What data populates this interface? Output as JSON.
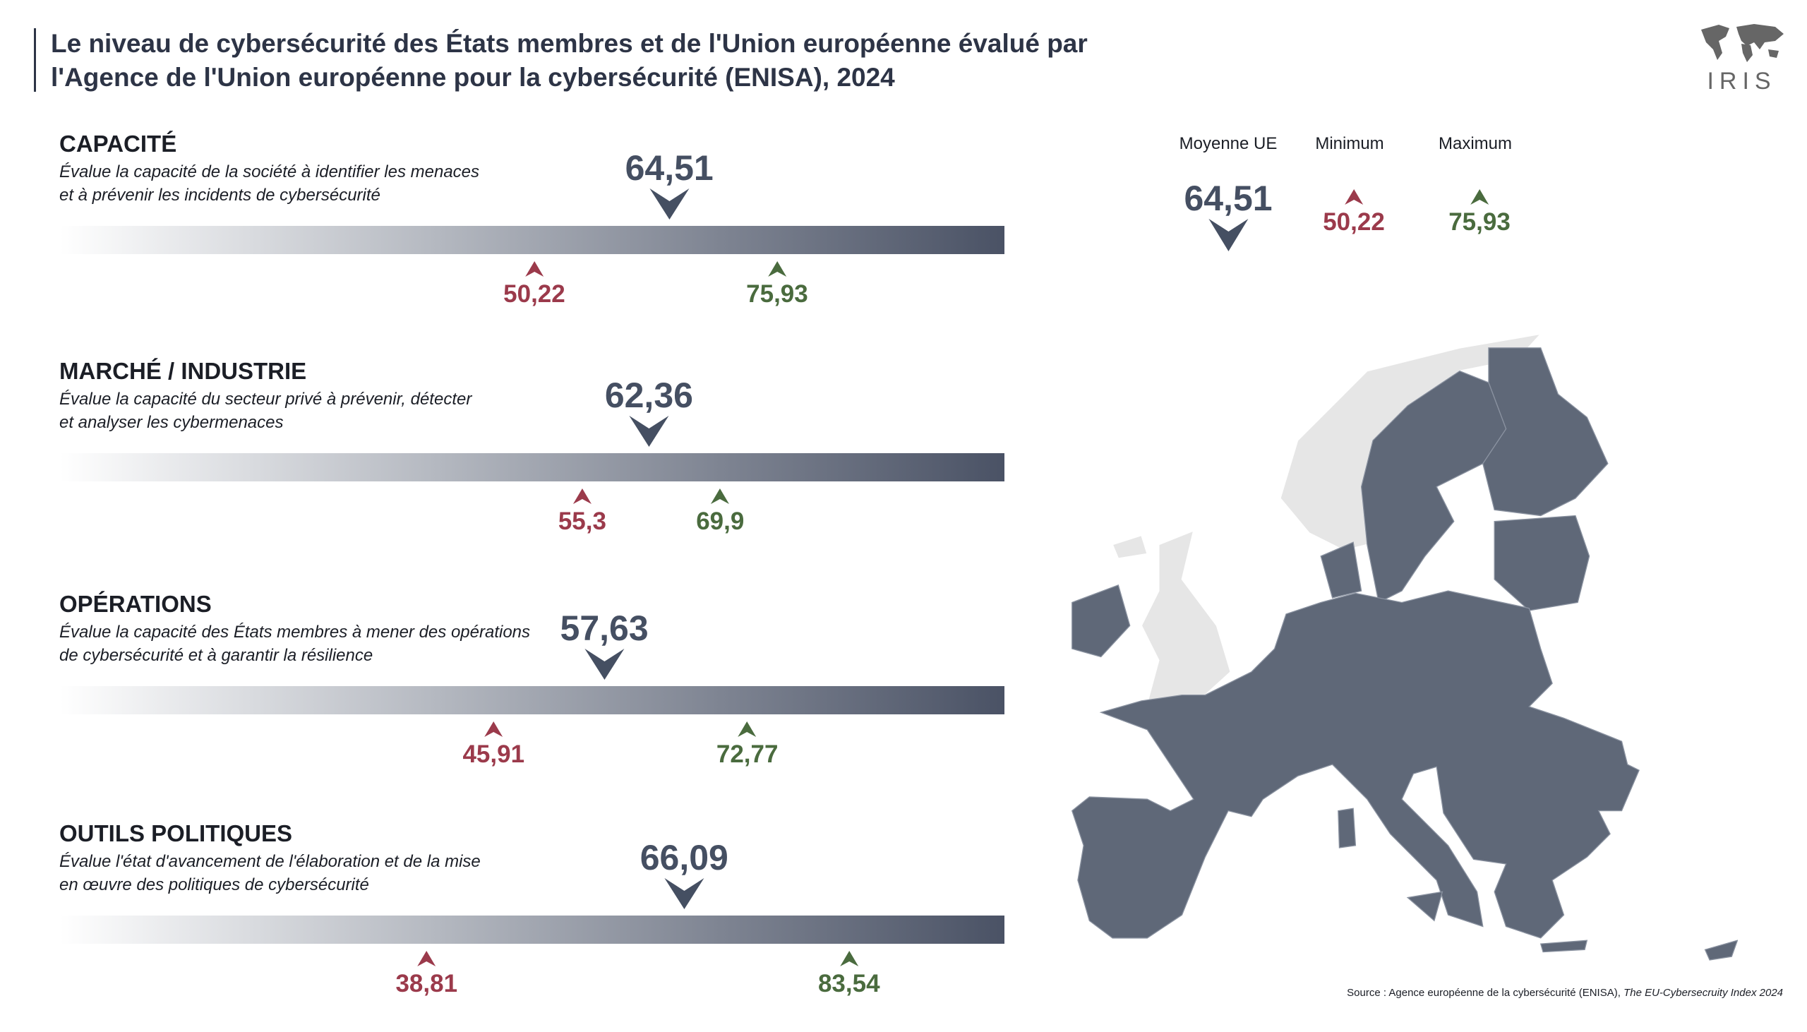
{
  "title": {
    "line1": "Le niveau de cybersécurité des États membres et de l'Union européenne évalué par",
    "line2": "l'Agence de l'Union européenne pour la cybersécurité (ENISA), 2024"
  },
  "logo": {
    "text": "IRIS"
  },
  "legend": {
    "avg_label": "Moyenne UE",
    "min_label": "Minimum",
    "max_label": "Maximum",
    "avg_value": "64,51",
    "min_value": "50,22",
    "max_value": "75,93"
  },
  "colors": {
    "avg": "#454f62",
    "min": "#9b3a4b",
    "max": "#4a6b3e",
    "eu_country": "#5f6878",
    "non_eu": "#e6e6e6"
  },
  "source": {
    "prefix": "Source : Agence européenne de la cybersécurité (ENISA), ",
    "title": "The EU-Cybersecruity Index 2024"
  },
  "chart_data": {
    "type": "range-marker",
    "scale": [
      0,
      100
    ],
    "categories": [
      {
        "name": "CAPACITÉ",
        "desc1": "Évalue la capacité de la société à identifier les menaces",
        "desc2": "et à prévenir les incidents de cybersécurité",
        "avg": 64.51,
        "min": 50.22,
        "max": 75.93,
        "avg_label": "64,51",
        "min_label": "50,22",
        "max_label": "75,93"
      },
      {
        "name": "MARCHÉ / INDUSTRIE",
        "desc1": "Évalue la capacité du secteur privé à prévenir, détecter",
        "desc2": "et analyser les cybermenaces",
        "avg": 62.36,
        "min": 55.3,
        "max": 69.9,
        "avg_label": "62,36",
        "min_label": "55,3",
        "max_label": "69,9"
      },
      {
        "name": "OPÉRATIONS",
        "desc1": "Évalue la capacité des États membres à mener des opérations",
        "desc2": "de cybersécurité et à garantir la résilience",
        "avg": 57.63,
        "min": 45.91,
        "max": 72.77,
        "avg_label": "57,63",
        "min_label": "45,91",
        "max_label": "72,77"
      },
      {
        "name": "OUTILS POLITIQUES",
        "desc1": "Évalue l'état d'avancement de l'élaboration et de la mise",
        "desc2": "en œuvre des politiques de cybersécurité",
        "avg": 66.09,
        "min": 38.81,
        "max": 83.54,
        "avg_label": "66,09",
        "min_label": "38,81",
        "max_label": "83,54"
      }
    ]
  }
}
